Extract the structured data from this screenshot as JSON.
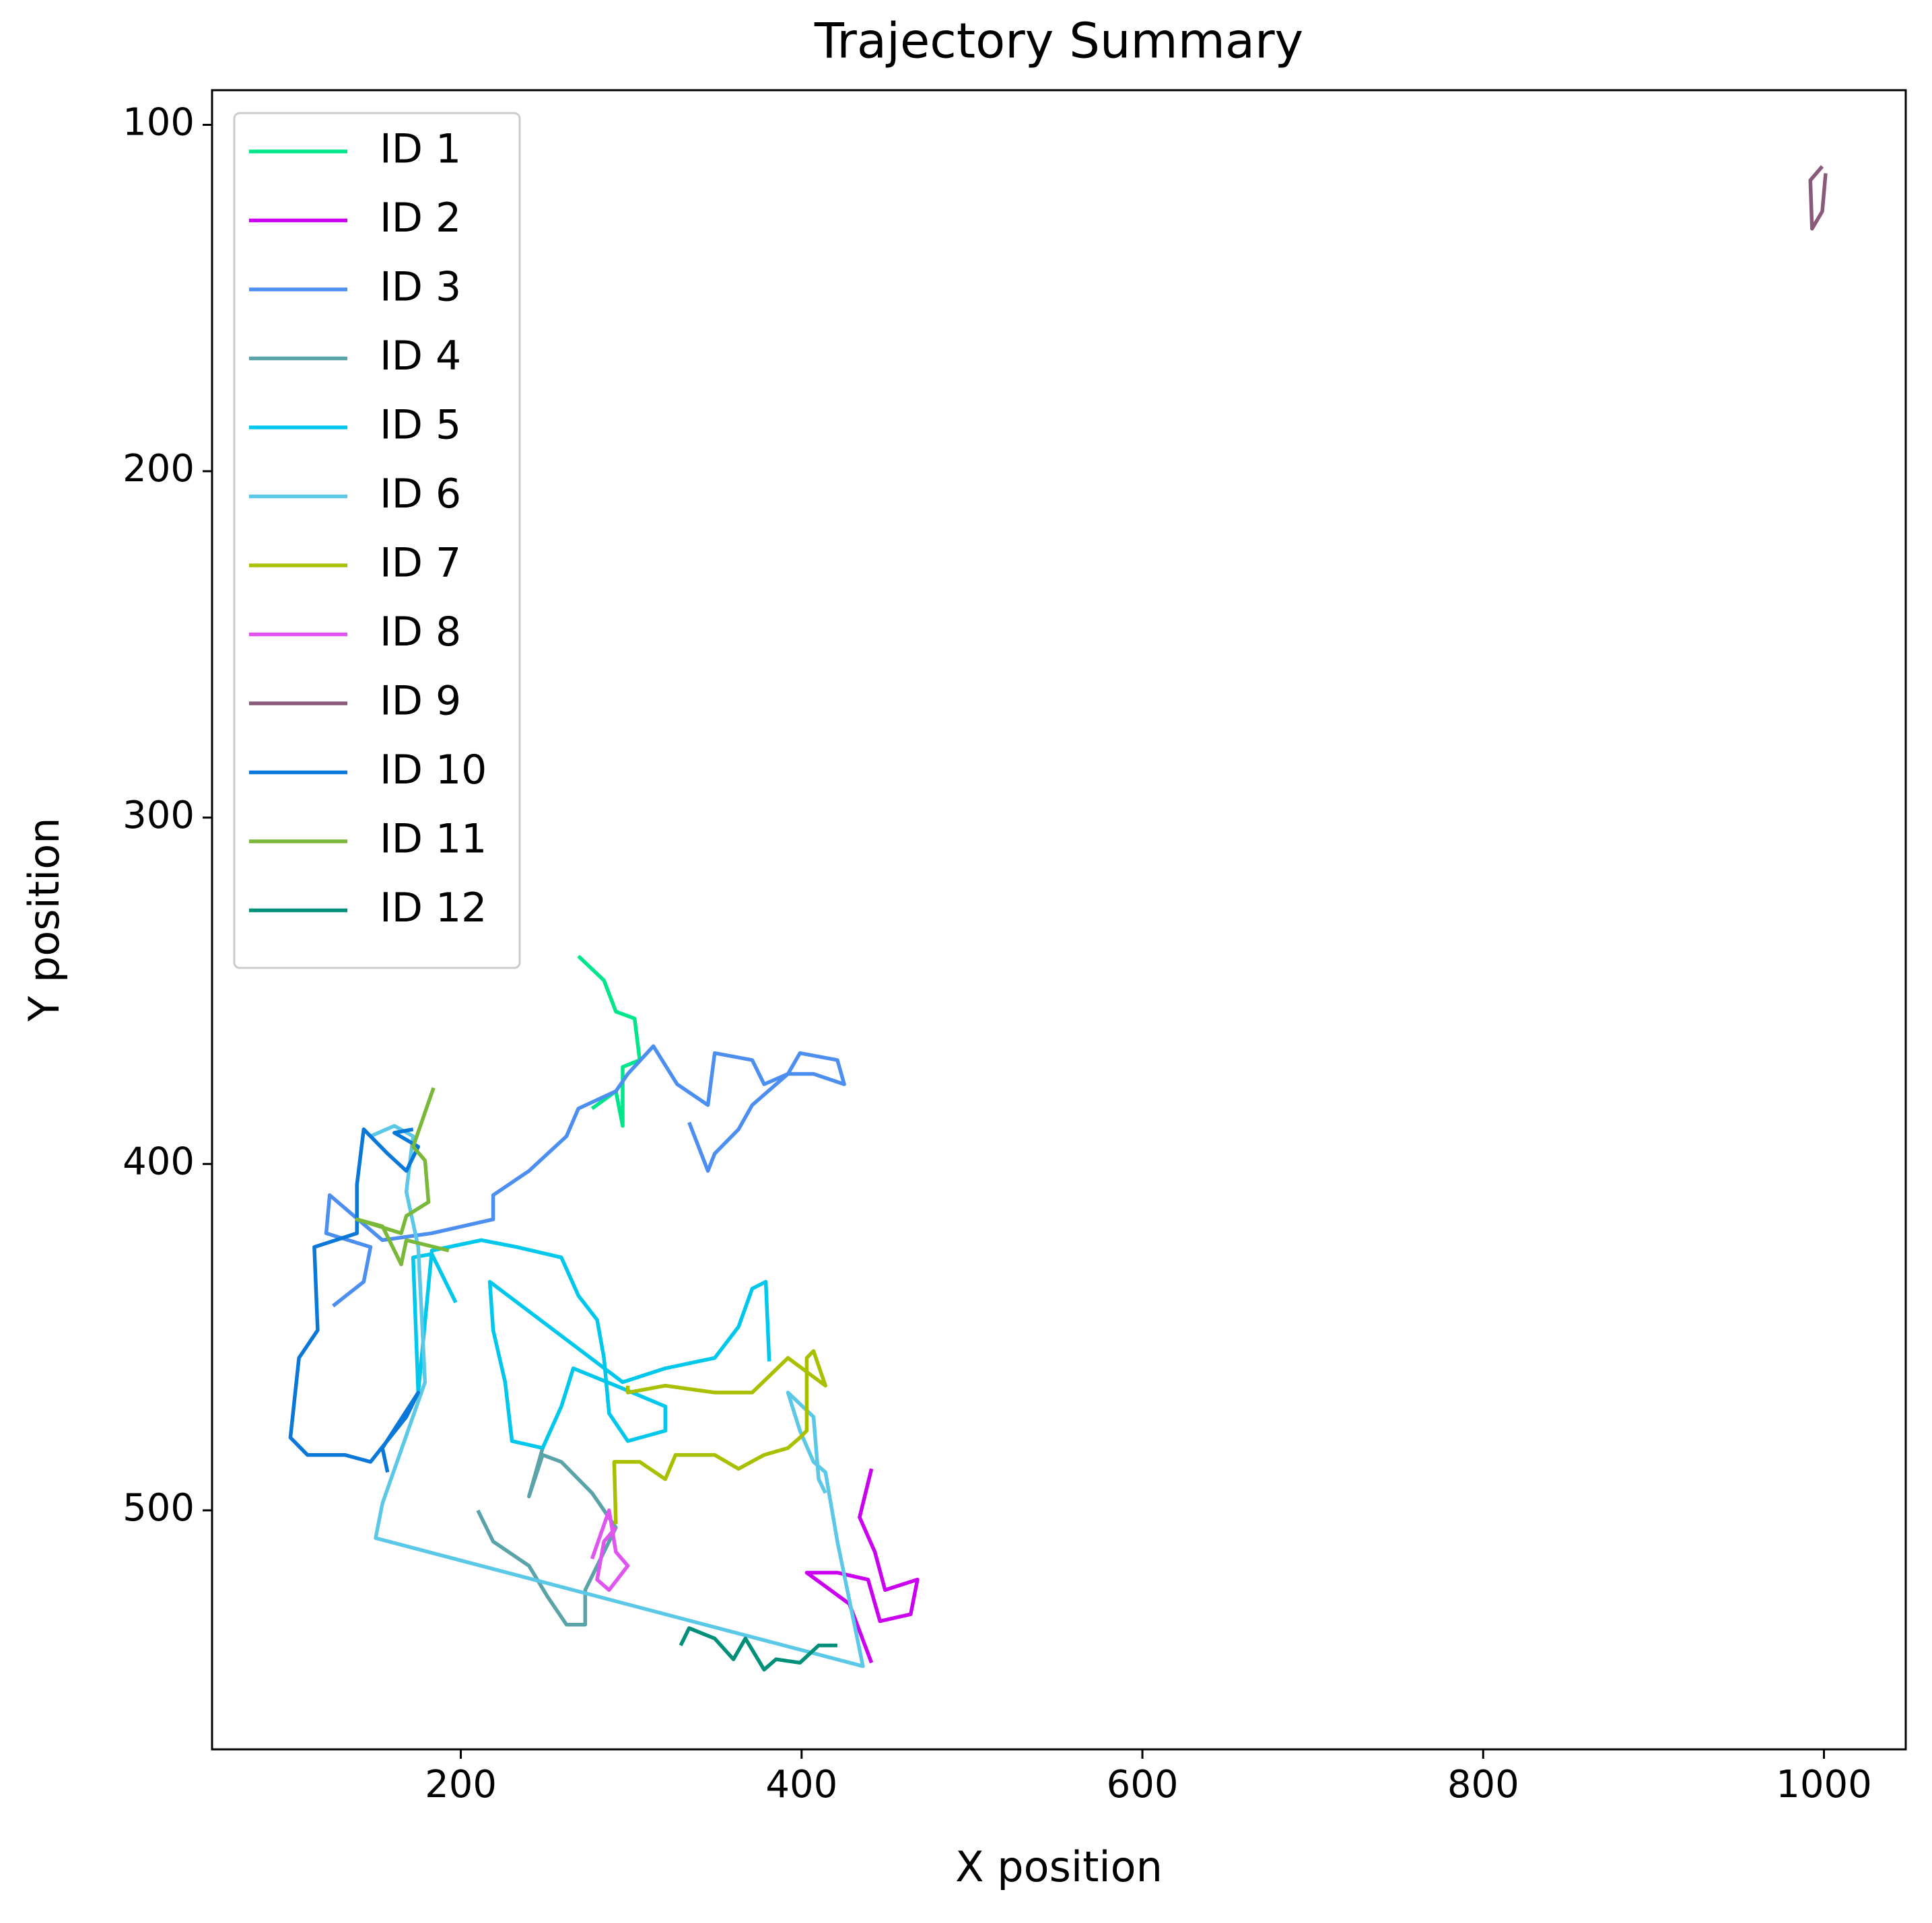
{
  "chart_data": {
    "type": "line",
    "title": "Trajectory Summary",
    "x_label": "X position",
    "y_label": "Y position",
    "xlim": [
      54,
      1048
    ],
    "ylim": [
      90,
      569
    ],
    "y_inverted": true,
    "xticks": [
      200,
      400,
      600,
      800,
      1000
    ],
    "yticks": [
      100,
      200,
      300,
      400,
      500
    ],
    "legend": "upper left",
    "grid": false,
    "series": [
      {
        "name": "ID 1",
        "color": "#00e68a",
        "x": [
          269,
          284,
          291,
          302,
          305,
          295,
          295,
          291,
          277
        ],
        "values": [
          340,
          347,
          356,
          358,
          370,
          372,
          389,
          379,
          384
        ]
      },
      {
        "name": "ID 2",
        "color": "#cc00f0",
        "x": [
          441,
          434,
          443,
          449,
          468,
          464,
          446,
          439,
          421,
          403,
          428,
          441
        ],
        "values": [
          488,
          502,
          512,
          523,
          520,
          530,
          532,
          520,
          518,
          518,
          527,
          544
        ]
      },
      {
        "name": "ID 3",
        "color": "#4d8ff0",
        "x": [
          125,
          143,
          147,
          121,
          123,
          154,
          183,
          219,
          219,
          240,
          262,
          269,
          291,
          298,
          313,
          327,
          345,
          349,
          371,
          378,
          392,
          399,
          421,
          425,
          407,
          392,
          371,
          363,
          349,
          345,
          334
        ],
        "values": [
          441,
          434,
          424,
          420,
          409,
          422,
          420,
          416,
          409,
          402,
          392,
          384,
          379,
          374,
          366,
          377,
          383,
          368,
          370,
          377,
          374,
          368,
          370,
          377,
          374,
          374,
          383,
          390,
          397,
          402,
          388
        ]
      },
      {
        "name": "ID 4",
        "color": "#5aa3a8",
        "x": [
          248,
          240,
          248,
          259,
          277,
          291,
          284,
          273,
          273,
          262,
          251,
          240,
          219,
          210
        ],
        "values": [
          482,
          496,
          484,
          486,
          495,
          505,
          512,
          523,
          533,
          533,
          525,
          516,
          509,
          500
        ]
      },
      {
        "name": "ID 5",
        "color": "#00c8ec",
        "x": [
          197,
          183,
          172,
          175,
          183,
          212,
          233,
          259,
          269,
          280,
          284,
          287,
          298,
          320,
          320,
          291,
          266,
          259,
          248,
          230,
          226,
          219,
          217,
          295,
          320,
          349,
          363,
          371,
          379,
          381
        ],
        "values": [
          440,
          426,
          427,
          466,
          425,
          422,
          424,
          427,
          438,
          445,
          456,
          472,
          480,
          477,
          470,
          464,
          459,
          470,
          482,
          480,
          463,
          448,
          434,
          463,
          459,
          456,
          447,
          436,
          434,
          457
        ]
      },
      {
        "name": "ID 6",
        "color": "#5bc8e8",
        "x": [
          147,
          161,
          172,
          168,
          175,
          179,
          154,
          150,
          436,
          421,
          414,
          407,
          399,
          392,
          407,
          410,
          414
        ],
        "values": [
          392,
          389,
          392,
          408,
          424,
          463,
          498,
          508,
          545,
          509,
          489,
          486,
          477,
          466,
          473,
          491,
          495
        ]
      },
      {
        "name": "ID 7",
        "color": "#a8c000",
        "x": [
          291,
          290,
          305,
          320,
          326,
          349,
          363,
          378,
          392,
          399,
          403,
          403,
          407,
          414,
          392,
          371,
          349,
          320,
          298,
          298
        ],
        "values": [
          504,
          486,
          486,
          491,
          484,
          484,
          488,
          484,
          482,
          479,
          477,
          456,
          454,
          464,
          456,
          466,
          466,
          464,
          466,
          464
        ]
      },
      {
        "name": "ID 8",
        "color": "#e055f0",
        "x": [
          277,
          287,
          291,
          298,
          287,
          280,
          284,
          291
        ],
        "values": [
          514,
          500,
          512,
          516,
          523,
          520,
          509,
          505
        ]
      },
      {
        "name": "ID 9",
        "color": "#8a5a7a",
        "x": [
          999,
          992,
          993,
          999,
          1001
        ],
        "values": [
          112,
          116,
          130,
          125,
          114
        ]
      },
      {
        "name": "ID 10",
        "color": "#0a78d8",
        "x": [
          157,
          154,
          175,
          168,
          147,
          132,
          110,
          100,
          105,
          116,
          114,
          139,
          139,
          143,
          157,
          168,
          175,
          161,
          172
        ],
        "values": [
          489,
          482,
          466,
          473,
          486,
          484,
          484,
          479,
          456,
          448,
          424,
          420,
          406,
          390,
          397,
          402,
          395,
          391,
          390
        ]
      },
      {
        "name": "ID 11",
        "color": "#7ab83a",
        "x": [
          184,
          172,
          179,
          181,
          168,
          165,
          139,
          154,
          165,
          168,
          193
        ],
        "values": [
          378,
          395,
          399,
          411,
          415,
          420,
          416,
          418,
          429,
          422,
          425
        ]
      },
      {
        "name": "ID 12",
        "color": "#00907a",
        "x": [
          329,
          334,
          349,
          360,
          367,
          378,
          385,
          399,
          410,
          421
        ],
        "values": [
          539,
          534,
          537,
          543,
          537,
          546,
          543,
          544,
          539,
          539
        ]
      }
    ]
  }
}
